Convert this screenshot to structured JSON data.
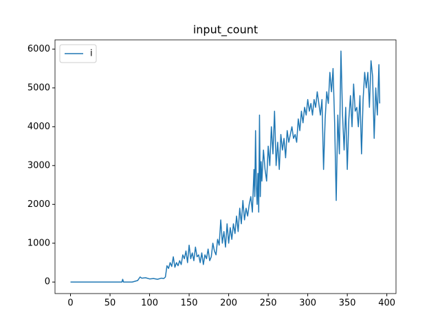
{
  "chart_data": {
    "type": "line",
    "title": "input_count",
    "x": [
      0,
      65,
      66,
      67,
      78,
      85,
      88,
      90,
      95,
      100,
      105,
      110,
      115,
      118,
      120,
      122,
      124,
      126,
      128,
      130,
      132,
      134,
      136,
      138,
      140,
      142,
      144,
      146,
      148,
      150,
      152,
      154,
      156,
      158,
      160,
      162,
      164,
      166,
      168,
      170,
      172,
      174,
      176,
      178,
      180,
      182,
      184,
      186,
      188,
      190,
      192,
      194,
      196,
      198,
      200,
      202,
      204,
      206,
      208,
      210,
      212,
      214,
      216,
      218,
      220,
      222,
      224,
      226,
      228,
      230,
      232,
      233,
      234,
      235,
      236,
      237,
      238,
      239,
      240,
      241,
      242,
      244,
      246,
      248,
      250,
      252,
      254,
      256,
      258,
      260,
      262,
      264,
      266,
      268,
      270,
      272,
      274,
      276,
      278,
      280,
      282,
      284,
      286,
      288,
      290,
      292,
      294,
      296,
      298,
      300,
      302,
      304,
      306,
      308,
      310,
      312,
      314,
      316,
      318,
      320,
      322,
      324,
      326,
      328,
      330,
      332,
      334,
      336,
      338,
      340,
      342,
      344,
      346,
      348,
      350,
      352,
      354,
      356,
      358,
      360,
      362,
      364,
      366,
      368,
      370,
      372,
      374,
      376,
      378,
      380,
      382,
      384,
      386,
      388,
      390,
      391
    ],
    "series": [
      {
        "name": "i",
        "color": "#1f77b4",
        "values": [
          0,
          0,
          70,
          0,
          0,
          40,
          130,
          100,
          110,
          80,
          90,
          70,
          100,
          90,
          130,
          420,
          350,
          500,
          400,
          650,
          380,
          500,
          420,
          550,
          450,
          700,
          600,
          800,
          500,
          950,
          600,
          750,
          550,
          900,
          650,
          700,
          500,
          750,
          450,
          700,
          600,
          850,
          550,
          650,
          1000,
          800,
          700,
          1100,
          950,
          1600,
          1000,
          1300,
          900,
          1500,
          1000,
          1400,
          1100,
          1500,
          1250,
          1700,
          1300,
          1900,
          1500,
          2100,
          1600,
          1900,
          1700,
          2000,
          2200,
          1800,
          2900,
          2200,
          3900,
          2500,
          2000,
          2800,
          1800,
          4300,
          2200,
          3100,
          2600,
          3400,
          2900,
          2600,
          3500,
          3000,
          4000,
          3300,
          4400,
          3000,
          3600,
          2900,
          3800,
          3400,
          3700,
          3200,
          3900,
          3600,
          3800,
          4000,
          3700,
          3800,
          3600,
          4200,
          3900,
          4400,
          4100,
          4500,
          4300,
          4700,
          4400,
          4600,
          4300,
          4700,
          4500,
          4900,
          4600,
          4300,
          4700,
          2900,
          4200,
          4900,
          4600,
          5400,
          4900,
          5500,
          4100,
          2100,
          4300,
          3300,
          5950,
          4300,
          3400,
          4500,
          2900,
          4200,
          4800,
          4000,
          5100,
          4400,
          4500,
          4000,
          4800,
          3300,
          4700,
          5400,
          5000,
          5400,
          4500,
          5700,
          5300,
          3700,
          5000,
          4300,
          5600,
          4600
        ]
      }
    ],
    "xlim": [
      -19.6,
      411.6
    ],
    "ylim": [
      -297,
      6237
    ],
    "xticks": [
      0,
      50,
      100,
      150,
      200,
      250,
      300,
      350,
      400
    ],
    "yticks": [
      0,
      1000,
      2000,
      3000,
      4000,
      5000,
      6000
    ],
    "legend": "upper left"
  }
}
